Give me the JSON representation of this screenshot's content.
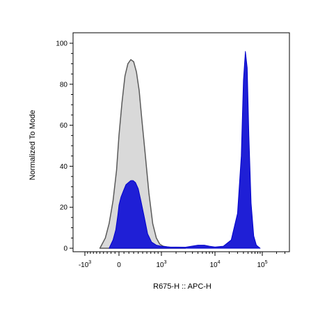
{
  "chart_data": {
    "type": "area",
    "title": "",
    "xlabel": "R675-H :: APC-H",
    "ylabel": "Normalized To Mode",
    "x_scale": "biexponential",
    "ylim": [
      0,
      100
    ],
    "y_ticks": [
      {
        "value": 0,
        "label": "0"
      },
      {
        "value": 20,
        "label": "20"
      },
      {
        "value": 40,
        "label": "40"
      },
      {
        "value": 60,
        "label": "60"
      },
      {
        "value": 80,
        "label": "80"
      },
      {
        "value": 100,
        "label": "100"
      }
    ],
    "x_ticks": [
      {
        "value": -1000,
        "base": "-10",
        "exp": "3"
      },
      {
        "value": 0,
        "base": "0",
        "exp": ""
      },
      {
        "value": 1000,
        "base": "10",
        "exp": "3"
      },
      {
        "value": 10000,
        "base": "10",
        "exp": "4"
      },
      {
        "value": 100000,
        "base": "10",
        "exp": "5"
      }
    ],
    "series": [
      {
        "color": "#d9d9d9",
        "stroke": "#5a5a5a",
        "x": [
          -500,
          -350,
          -250,
          -150,
          -60,
          0,
          60,
          120,
          180,
          240,
          300,
          360,
          420,
          480,
          560,
          650,
          750,
          850,
          950,
          1100,
          1400,
          2000,
          3000
        ],
        "y": [
          0,
          5,
          12,
          23,
          38,
          55,
          71,
          84,
          90,
          92,
          91,
          86,
          77,
          63,
          46,
          27,
          12,
          5,
          2,
          1,
          0.5,
          0.3,
          0
        ]
      },
      {
        "color": "#1f1fd6",
        "stroke": "#0000cc",
        "x": [
          -250,
          -150,
          -80,
          -30,
          0,
          40,
          90,
          140,
          190,
          240,
          290,
          340,
          400,
          460,
          540,
          620,
          720,
          850,
          1000,
          1500,
          3000,
          5000,
          6500,
          8000,
          10000,
          15000,
          22000,
          30000,
          36000,
          40000,
          44000,
          48000,
          52000,
          58000,
          66000,
          75000,
          90000
        ],
        "y": [
          0,
          4,
          9,
          16,
          21,
          25,
          28,
          31,
          32,
          33,
          33,
          32,
          29,
          23,
          15,
          7,
          3,
          1.5,
          1,
          0.6,
          0.5,
          1.5,
          1.5,
          1,
          0.6,
          1,
          4,
          17,
          45,
          82,
          96,
          88,
          55,
          22,
          6,
          1.5,
          0
        ]
      }
    ]
  }
}
